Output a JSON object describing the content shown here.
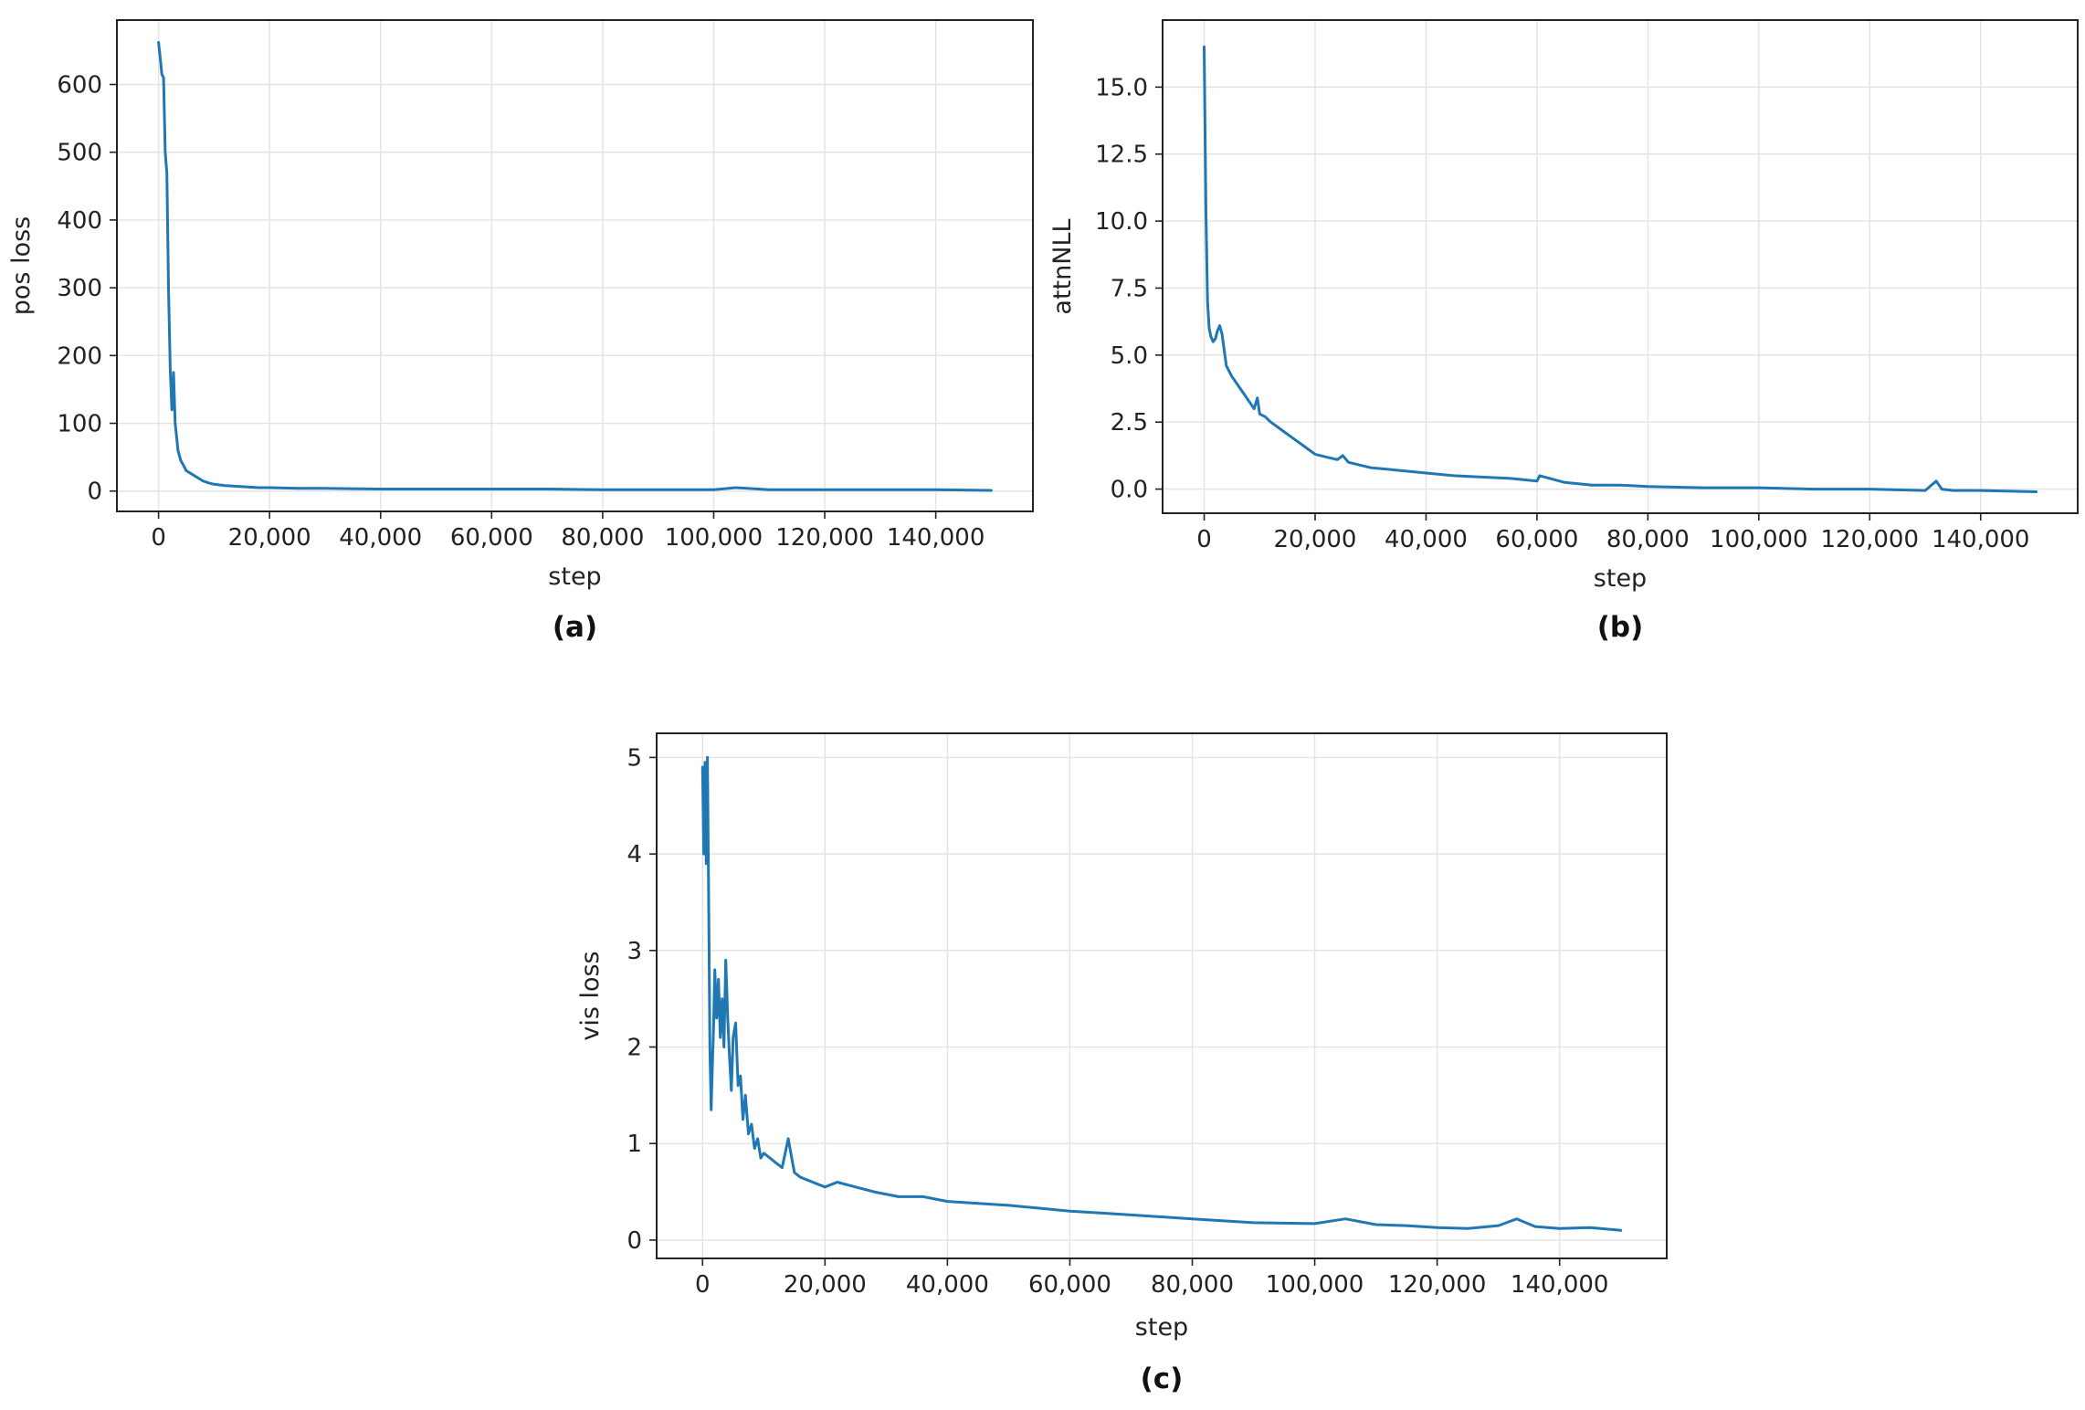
{
  "colors": {
    "series": "#1f77b4"
  },
  "chart_data": [
    {
      "type": "line",
      "panel_label": "(a)",
      "xlabel": "step",
      "ylabel": "pos loss",
      "xlim": [
        -7500,
        157500
      ],
      "ylim": [
        -30,
        695
      ],
      "xticks": [
        0,
        20000,
        40000,
        60000,
        80000,
        100000,
        120000,
        140000
      ],
      "xtick_labels": [
        "0",
        "20,000",
        "40,000",
        "60,000",
        "80,000",
        "100,000",
        "120,000",
        "140,000"
      ],
      "yticks": [
        0,
        100,
        200,
        300,
        400,
        500,
        600
      ],
      "ytick_labels": [
        "0",
        "100",
        "200",
        "300",
        "400",
        "500",
        "600"
      ],
      "grid": true,
      "series": [
        {
          "x": [
            0,
            300,
            600,
            900,
            1200,
            1500,
            1800,
            2100,
            2400,
            2700,
            3000,
            3500,
            4000,
            4500,
            5000,
            6000,
            7000,
            8000,
            9000,
            10000,
            12000,
            14000,
            16000,
            18000,
            20000,
            25000,
            30000,
            40000,
            50000,
            60000,
            70000,
            80000,
            90000,
            100000,
            104000,
            110000,
            120000,
            130000,
            140000,
            150000
          ],
          "y": [
            662,
            640,
            615,
            610,
            500,
            470,
            300,
            180,
            120,
            175,
            100,
            60,
            45,
            38,
            30,
            25,
            20,
            15,
            12,
            10,
            8,
            7,
            6,
            5,
            5,
            4,
            4,
            3,
            3,
            3,
            3,
            2,
            2,
            2,
            5,
            2,
            2,
            2,
            2,
            1
          ]
        }
      ]
    },
    {
      "type": "line",
      "panel_label": "(b)",
      "xlabel": "step",
      "ylabel": "attnNLL",
      "xlim": [
        -7500,
        157500
      ],
      "ylim": [
        -0.9,
        17.5
      ],
      "xticks": [
        0,
        20000,
        40000,
        60000,
        80000,
        100000,
        120000,
        140000
      ],
      "xtick_labels": [
        "0",
        "20,000",
        "40,000",
        "60,000",
        "80,000",
        "100,000",
        "120,000",
        "140,000"
      ],
      "yticks": [
        0,
        2.5,
        5,
        7.5,
        10,
        12.5,
        15
      ],
      "ytick_labels": [
        "0.0",
        "2.5",
        "5.0",
        "7.5",
        "10.0",
        "12.5",
        "15.0"
      ],
      "grid": true,
      "series": [
        {
          "x": [
            0,
            300,
            600,
            900,
            1200,
            1600,
            2000,
            2400,
            2800,
            3200,
            3600,
            4000,
            5000,
            6000,
            7000,
            8000,
            9000,
            9600,
            10000,
            11000,
            12000,
            14000,
            16000,
            18000,
            20000,
            22000,
            24000,
            25000,
            26000,
            28000,
            30000,
            35000,
            40000,
            45000,
            50000,
            55000,
            60000,
            60500,
            65000,
            70000,
            75000,
            80000,
            90000,
            100000,
            110000,
            120000,
            130000,
            132000,
            133000,
            135000,
            140000,
            150000
          ],
          "y": [
            16.5,
            10.5,
            7.0,
            6.0,
            5.7,
            5.5,
            5.6,
            5.9,
            6.1,
            5.8,
            5.2,
            4.6,
            4.2,
            3.9,
            3.6,
            3.3,
            3.0,
            3.4,
            2.8,
            2.7,
            2.5,
            2.2,
            1.9,
            1.6,
            1.3,
            1.2,
            1.1,
            1.25,
            1.0,
            0.9,
            0.8,
            0.7,
            0.6,
            0.5,
            0.45,
            0.4,
            0.3,
            0.5,
            0.25,
            0.15,
            0.15,
            0.1,
            0.05,
            0.05,
            0.0,
            0.0,
            -0.05,
            0.3,
            0.0,
            -0.05,
            -0.05,
            -0.1
          ]
        }
      ]
    },
    {
      "type": "line",
      "panel_label": "(c)",
      "xlabel": "step",
      "ylabel": "vis loss",
      "xlim": [
        -7500,
        157500
      ],
      "ylim": [
        -0.19,
        5.25
      ],
      "xticks": [
        0,
        20000,
        40000,
        60000,
        80000,
        100000,
        120000,
        140000
      ],
      "xtick_labels": [
        "0",
        "20,000",
        "40,000",
        "60,000",
        "80,000",
        "100,000",
        "120,000",
        "140,000"
      ],
      "yticks": [
        0,
        1,
        2,
        3,
        4,
        5
      ],
      "ytick_labels": [
        "0",
        "1",
        "2",
        "3",
        "4",
        "5"
      ],
      "grid": true,
      "series": [
        {
          "x": [
            0,
            200,
            400,
            600,
            800,
            1000,
            1200,
            1400,
            1600,
            1800,
            2000,
            2300,
            2600,
            2900,
            3200,
            3500,
            3800,
            4100,
            4400,
            4700,
            5000,
            5400,
            5800,
            6200,
            6600,
            7000,
            7500,
            8000,
            8500,
            9000,
            9500,
            10000,
            11000,
            12000,
            13000,
            14000,
            15000,
            16000,
            18000,
            20000,
            22000,
            25000,
            28000,
            32000,
            36000,
            40000,
            45000,
            50000,
            55000,
            60000,
            65000,
            70000,
            80000,
            90000,
            100000,
            105000,
            110000,
            115000,
            120000,
            125000,
            130000,
            133000,
            136000,
            140000,
            145000,
            150000
          ],
          "y": [
            4.9,
            4.0,
            4.95,
            3.9,
            5.0,
            3.5,
            2.0,
            1.35,
            1.8,
            2.2,
            2.8,
            2.3,
            2.7,
            2.1,
            2.5,
            2.0,
            2.9,
            2.3,
            1.9,
            1.55,
            2.1,
            2.25,
            1.6,
            1.7,
            1.25,
            1.5,
            1.1,
            1.2,
            0.95,
            1.05,
            0.85,
            0.9,
            0.85,
            0.8,
            0.75,
            1.05,
            0.7,
            0.65,
            0.6,
            0.55,
            0.6,
            0.55,
            0.5,
            0.45,
            0.45,
            0.4,
            0.38,
            0.36,
            0.33,
            0.3,
            0.28,
            0.26,
            0.22,
            0.18,
            0.17,
            0.22,
            0.16,
            0.15,
            0.13,
            0.12,
            0.15,
            0.22,
            0.14,
            0.12,
            0.13,
            0.1
          ]
        }
      ]
    }
  ]
}
